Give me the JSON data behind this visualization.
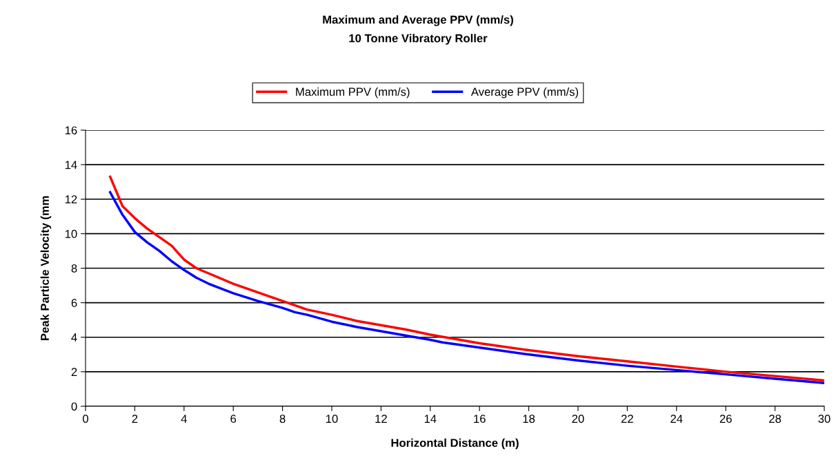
{
  "chart_data": {
    "type": "line",
    "title": "Maximum and Average PPV (mm/s)",
    "subtitle": "10 Tonne Vibratory Roller",
    "xlabel": "Horizontal Distance (m)",
    "ylabel": "Peak Particle Velocity (mm",
    "series": [
      {
        "name": "Maximum PPV (mm/s)",
        "color": "#ff0000",
        "x": [
          1,
          1.5,
          2,
          2.5,
          3,
          3.5,
          4,
          4.5,
          5,
          6,
          7,
          8,
          9,
          10,
          11,
          12,
          13,
          14,
          15,
          16,
          18,
          20,
          22,
          24,
          26,
          28,
          30
        ],
        "values": [
          13.3,
          11.6,
          10.9,
          10.3,
          9.8,
          9.3,
          8.5,
          8.0,
          7.7,
          7.1,
          6.6,
          6.1,
          5.6,
          5.3,
          4.95,
          4.7,
          4.45,
          4.15,
          3.9,
          3.65,
          3.25,
          2.9,
          2.6,
          2.3,
          2.0,
          1.75,
          1.5
        ]
      },
      {
        "name": "Average PPV (mm/s)",
        "color": "#0000ff",
        "x": [
          1,
          1.5,
          2,
          2.5,
          3,
          3.5,
          4,
          4.5,
          5,
          6,
          7,
          8,
          8.5,
          9,
          9.5,
          10,
          11,
          12,
          13,
          14,
          14.5,
          16,
          18,
          20,
          22,
          24,
          26,
          28,
          30
        ],
        "values": [
          12.4,
          11.1,
          10.1,
          9.5,
          9.0,
          8.4,
          7.9,
          7.45,
          7.1,
          6.55,
          6.1,
          5.7,
          5.45,
          5.3,
          5.1,
          4.9,
          4.6,
          4.35,
          4.1,
          3.85,
          3.7,
          3.4,
          3.0,
          2.65,
          2.35,
          2.1,
          1.85,
          1.6,
          1.35
        ]
      }
    ],
    "xlim": [
      0,
      30
    ],
    "xticks": [
      0,
      2,
      4,
      6,
      8,
      10,
      12,
      14,
      16,
      18,
      20,
      22,
      24,
      26,
      28,
      30
    ],
    "ylim": [
      0,
      16
    ],
    "yticks": [
      0,
      2,
      4,
      6,
      8,
      10,
      12,
      14,
      16
    ],
    "grid": "y",
    "legend": "top",
    "marker": "none",
    "line_style": "solid"
  }
}
